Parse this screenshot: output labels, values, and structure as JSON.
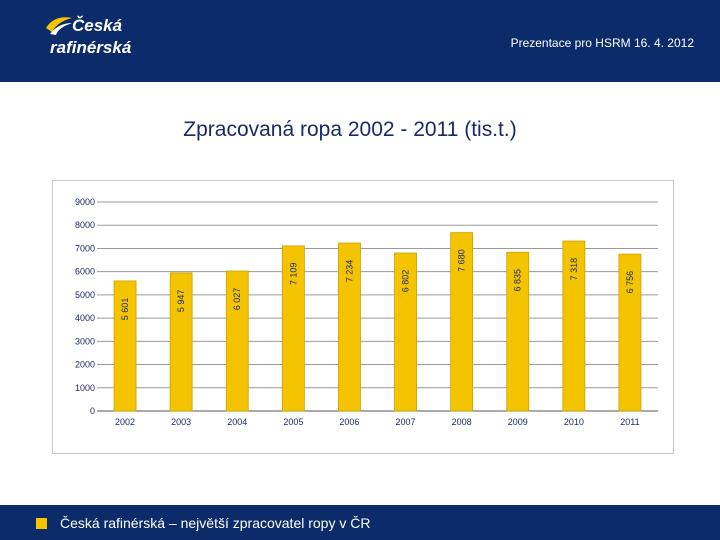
{
  "header": {
    "logo_line1": "Česká",
    "logo_line2": "rafinérská",
    "presentation": "Prezentace pro HSRM 16. 4. 2012"
  },
  "title": "Zpracovaná ropa 2002 - 2011 (tis.t.)",
  "footer": {
    "text": "Česká rafinérská – největší zpracovatel ropy v ČR"
  },
  "colors": {
    "header_bg": "#0b2b6a",
    "bar": "#f5c400",
    "bar_border": "#c8a000",
    "footer_square": "#f5c400"
  },
  "chart_data": {
    "type": "bar",
    "title": "",
    "xlabel": "",
    "ylabel": "",
    "ylim": [
      0,
      9000
    ],
    "yticks": [
      0,
      1000,
      2000,
      3000,
      4000,
      5000,
      6000,
      7000,
      8000,
      9000
    ],
    "grid": true,
    "categories": [
      "2002",
      "2003",
      "2004",
      "2005",
      "2006",
      "2007",
      "2008",
      "2009",
      "2010",
      "2011"
    ],
    "values": [
      5601,
      5947,
      6027,
      7109,
      7234,
      6802,
      7680,
      6835,
      7318,
      6756
    ],
    "value_labels": [
      "5 601",
      "5 947",
      "6 027",
      "7 109",
      "7 234",
      "6 802",
      "7 680",
      "6 835",
      "7 318",
      "6 756"
    ]
  }
}
